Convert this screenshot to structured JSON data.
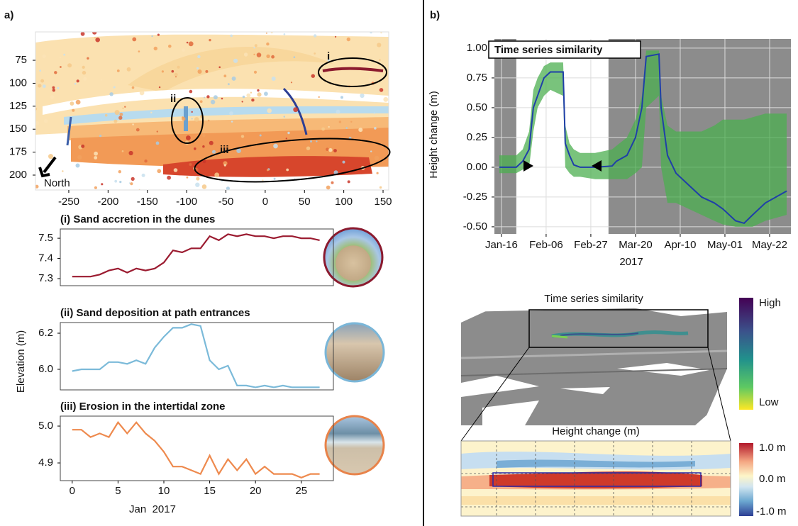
{
  "panel_labels": [
    "a)",
    "b)"
  ],
  "chart_data": [
    {
      "type": "map",
      "xlim": [
        -292.4,
        157.2
      ],
      "ylim": [
        216.2,
        44.1
      ],
      "xticks": [
        -250,
        -200,
        -150,
        -100,
        -50,
        0,
        50,
        100,
        150
      ],
      "yticks": [
        75,
        100,
        125,
        150,
        175,
        200
      ],
      "annotations": [
        "i",
        "ii",
        "iii"
      ],
      "north_label": "North"
    },
    {
      "type": "line",
      "title": "(i) Sand accretion in the dunes",
      "x": [
        0,
        1,
        2,
        3,
        4,
        5,
        6,
        7,
        8,
        9,
        10,
        11,
        12,
        13,
        14,
        15,
        16,
        17,
        18,
        19,
        20,
        21,
        22,
        23,
        24,
        25,
        26,
        27
      ],
      "values": [
        7.31,
        7.31,
        7.31,
        7.32,
        7.34,
        7.35,
        7.33,
        7.35,
        7.34,
        7.35,
        7.38,
        7.44,
        7.43,
        7.45,
        7.45,
        7.51,
        7.49,
        7.52,
        7.51,
        7.52,
        7.51,
        7.51,
        7.5,
        7.51,
        7.51,
        7.5,
        7.5,
        7.49
      ],
      "color": "#9b1b30",
      "xlim": [
        -1.3,
        28.5
      ],
      "ylim": [
        7.265,
        7.546
      ],
      "yticks": [
        7.3,
        7.4,
        7.5
      ]
    },
    {
      "type": "line",
      "title": "(ii) Sand deposition at path entrances",
      "ylabel": "Elevation (m)",
      "x": [
        0,
        1,
        2,
        3,
        4,
        5,
        6,
        7,
        8,
        9,
        10,
        11,
        12,
        13,
        14,
        15,
        16,
        17,
        18,
        19,
        20,
        21,
        22,
        23,
        24,
        25,
        26,
        27
      ],
      "values": [
        5.99,
        6.0,
        6.0,
        6.0,
        6.04,
        6.04,
        6.03,
        6.05,
        6.03,
        6.12,
        6.18,
        6.23,
        6.23,
        6.25,
        6.24,
        6.05,
        6.0,
        6.02,
        5.91,
        5.91,
        5.9,
        5.91,
        5.9,
        5.91,
        5.9,
        5.9,
        5.9,
        5.9
      ],
      "color": "#7bbad9",
      "xlim": [
        -1.3,
        28.5
      ],
      "ylim": [
        5.886,
        6.259
      ],
      "yticks": [
        {
          "value": 6,
          "label": "6.0"
        },
        6.2
      ]
    },
    {
      "type": "line",
      "title": "(iii) Erosion in the intertidal zone",
      "xlabel": "Jan  2017",
      "x": [
        0,
        1,
        2,
        3,
        4,
        5,
        6,
        7,
        8,
        9,
        10,
        11,
        12,
        13,
        14,
        15,
        16,
        17,
        18,
        19,
        20,
        21,
        22,
        23,
        24,
        25,
        26,
        27
      ],
      "values": [
        4.99,
        4.99,
        4.97,
        4.98,
        4.97,
        5.01,
        4.98,
        5.01,
        4.98,
        4.96,
        4.93,
        4.89,
        4.89,
        4.88,
        4.87,
        4.92,
        4.87,
        4.91,
        4.88,
        4.91,
        4.87,
        4.89,
        4.87,
        4.87,
        4.87,
        4.86,
        4.87,
        4.87
      ],
      "color": "#ee8a4e",
      "xlim": [
        -1.3,
        28.5
      ],
      "ylim": [
        4.852,
        5.027
      ],
      "xticks": [
        0,
        5,
        10,
        15,
        20,
        25
      ],
      "yticks": [
        4.9,
        {
          "value": 5,
          "label": "5.0"
        }
      ]
    },
    {
      "type": "envelope",
      "title": "Time series similarity",
      "xlabel": "2017",
      "ylabel": "Height change (m)",
      "x": [
        15,
        23,
        26,
        29,
        31,
        33,
        36,
        39,
        45,
        46,
        48,
        50,
        53,
        60,
        68,
        70,
        75,
        79,
        82,
        84,
        90,
        91,
        94,
        98,
        104,
        110,
        116,
        120,
        126,
        130,
        134,
        140,
        150
      ],
      "values": [
        0,
        0,
        0.05,
        0.15,
        0.5,
        0.6,
        0.75,
        0.8,
        0.8,
        0.2,
        0.1,
        0.02,
        0,
        0,
        0.01,
        0.05,
        0.1,
        0.25,
        0.5,
        0.93,
        0.95,
        0.5,
        0.1,
        -0.05,
        -0.15,
        -0.25,
        -0.3,
        -0.35,
        -0.45,
        -0.47,
        -0.4,
        -0.3,
        -0.2
      ],
      "band": {
        "lower": [
          -0.05,
          -0.05,
          -0.02,
          0,
          0.3,
          0.5,
          0.6,
          0.65,
          0.6,
          0,
          -0.05,
          -0.08,
          -0.08,
          -0.1,
          -0.1,
          -0.1,
          -0.1,
          -0.05,
          0,
          0.5,
          0.6,
          0,
          -0.3,
          -0.3,
          -0.35,
          -0.4,
          -0.45,
          -0.48,
          -0.5,
          -0.5,
          -0.5,
          -0.45,
          -0.4
        ],
        "upper": [
          0.1,
          0.1,
          0.15,
          0.3,
          0.65,
          0.75,
          0.85,
          0.88,
          0.88,
          0.35,
          0.2,
          0.15,
          0.12,
          0.12,
          0.15,
          0.18,
          0.25,
          0.4,
          0.6,
          0.98,
          0.98,
          0.6,
          0.35,
          0.3,
          0.3,
          0.3,
          0.35,
          0.4,
          0.4,
          0.4,
          0.42,
          0.45,
          0.45
        ]
      },
      "color": "#1f3fa8",
      "band_color": "#4caf50",
      "shade_color": "#808080",
      "shaded_ranges": [
        [
          12.7,
          23
        ],
        [
          66.3,
          152
        ]
      ],
      "xlim": [
        12.7,
        152
      ],
      "ylim": [
        -0.56,
        1.077
      ],
      "grid": true,
      "xticks": [
        {
          "value": 16,
          "label": "Jan-16"
        },
        {
          "value": 37,
          "label": "Feb-06"
        },
        {
          "value": 58,
          "label": "Feb-27"
        },
        {
          "value": 79,
          "label": "Mar-20"
        },
        {
          "value": 100,
          "label": "Apr-10"
        },
        {
          "value": 121,
          "label": "May-01"
        },
        {
          "value": 142,
          "label": "May-22"
        }
      ],
      "yticks": [
        {
          "value": -0.5,
          "label": "-0.50"
        },
        {
          "value": -0.25,
          "label": "-0.25"
        },
        {
          "value": 0,
          "label": "0.00"
        },
        {
          "value": 0.25,
          "label": "0.25"
        },
        {
          "value": 0.5,
          "label": "0.50"
        },
        {
          "value": 0.75,
          "label": "0.75"
        },
        {
          "value": 1,
          "label": "1.00"
        }
      ]
    }
  ],
  "maps": [
    {
      "title": "Time series similarity",
      "colorbar_labels": [
        "High",
        "Low"
      ]
    },
    {
      "title": "Height change (m)",
      "colorbar_labels": [
        "1.0 m",
        "0.0 m",
        "-1.0 m"
      ]
    }
  ]
}
